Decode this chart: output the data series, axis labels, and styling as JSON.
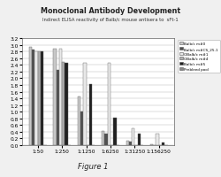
{
  "title": "Monoclonal Antibody Development",
  "subtitle": "Indirect ELISA reactivity of Balb/c mouse antisera to  sFt-1",
  "figure_label": "Figure 1",
  "categories": [
    "1:50",
    "1:250",
    "1:1250",
    "1:6250",
    "1:31250",
    "1:156250"
  ],
  "series": [
    {
      "label": "Balb/c m#0",
      "color": "#c8c8c8",
      "values": [
        2.95,
        2.9,
        1.45,
        0.42,
        0.12,
        0.02
      ]
    },
    {
      "label": "Balb/c m#CS_25-1",
      "color": "#505050",
      "values": [
        2.85,
        2.25,
        1.0,
        0.35,
        0.1,
        0.0
      ]
    },
    {
      "label": "OBalb/c m#1",
      "color": "#e8e8e8",
      "values": [
        2.8,
        2.9,
        2.45,
        2.45,
        0.5,
        0.35
      ]
    },
    {
      "label": "OBalb/c m#4",
      "color": "#b0b0b0",
      "values": [
        2.8,
        2.5,
        0.0,
        0.0,
        0.0,
        0.0
      ]
    },
    {
      "label": "Balb/c m#5",
      "color": "#202020",
      "values": [
        2.8,
        2.45,
        1.82,
        0.82,
        0.35,
        0.07
      ]
    },
    {
      "label": "Prebleed pool",
      "color": "#888888",
      "values": [
        0.0,
        0.0,
        0.0,
        0.0,
        0.0,
        0.0
      ]
    }
  ],
  "ylim": [
    0,
    3.2
  ],
  "yticks": [
    0.0,
    0.2,
    0.4,
    0.6,
    0.8,
    1.0,
    1.2,
    1.4,
    1.6,
    1.8,
    2.0,
    2.2,
    2.4,
    2.6,
    2.8,
    3.0,
    3.2
  ],
  "bg_color": "#f0f0f0",
  "plot_bg": "#ffffff"
}
